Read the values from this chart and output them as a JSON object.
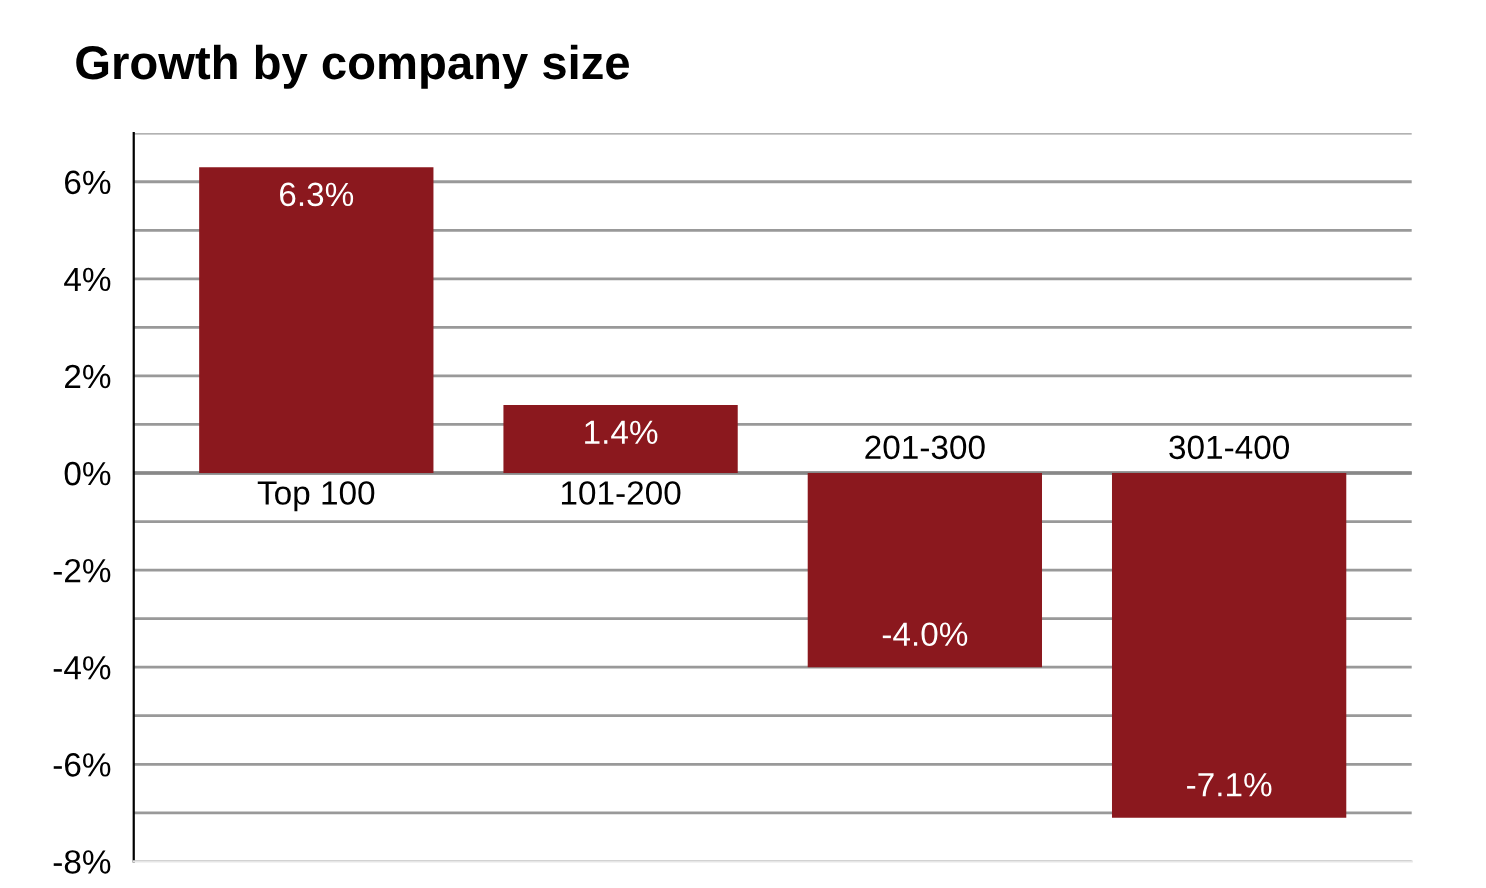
{
  "chart_data": {
    "type": "bar",
    "title": "Growth by company size",
    "categories": [
      "Top 100",
      "101-200",
      "201-300",
      "301-400"
    ],
    "values": [
      6.3,
      1.4,
      -4.0,
      -7.1
    ],
    "value_labels": [
      "6.3%",
      "1.4%",
      "-4.0%",
      "-7.1%"
    ],
    "color": "#8b181e",
    "ylim": [
      -8,
      7
    ],
    "yticks": [
      {
        "value": -8,
        "label": "-8%"
      },
      {
        "value": -7,
        "label": null
      },
      {
        "value": -6,
        "label": "-6%"
      },
      {
        "value": -5,
        "label": null
      },
      {
        "value": -4,
        "label": "-4%"
      },
      {
        "value": -3,
        "label": null
      },
      {
        "value": -2,
        "label": "-2%"
      },
      {
        "value": -1,
        "label": null
      },
      {
        "value": 0,
        "label": "0%"
      },
      {
        "value": 1,
        "label": null
      },
      {
        "value": 2,
        "label": "2%"
      },
      {
        "value": 3,
        "label": null
      },
      {
        "value": 4,
        "label": "4%"
      },
      {
        "value": 5,
        "label": null
      },
      {
        "value": 6,
        "label": "6%"
      },
      {
        "value": 7,
        "label": null
      }
    ],
    "grid": "y"
  }
}
